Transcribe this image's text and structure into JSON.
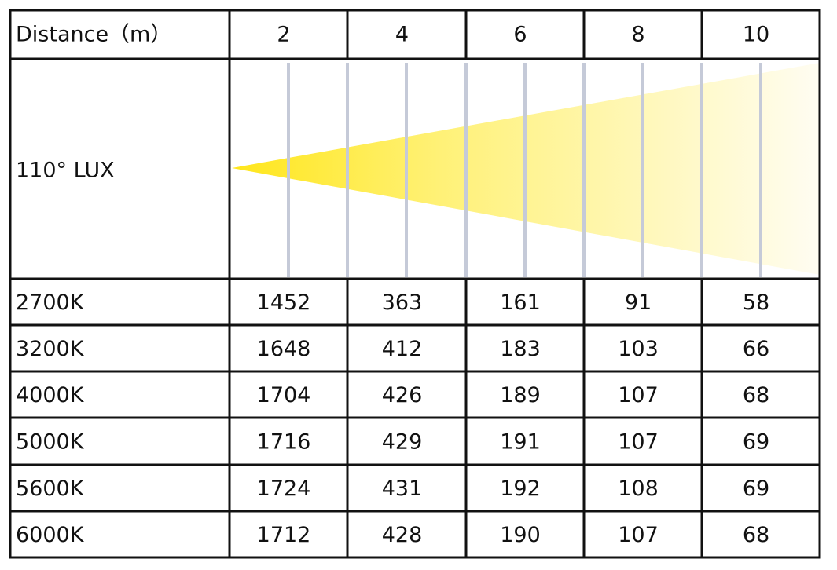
{
  "table": {
    "header": [
      "Distance（m）",
      "2",
      "4",
      "6",
      "8",
      "10"
    ],
    "beam_label": "110° LUX",
    "rows": [
      [
        "2700K",
        "1452",
        "363",
        "161",
        "91",
        "58"
      ],
      [
        "3200K",
        "1648",
        "412",
        "183",
        "103",
        "66"
      ],
      [
        "4000K",
        "1704",
        "426",
        "189",
        "107",
        "68"
      ],
      [
        "5000K",
        "1716",
        "429",
        "191",
        "107",
        "69"
      ],
      [
        "5600K",
        "1724",
        "431",
        "192",
        "108",
        "69"
      ],
      [
        "6000K",
        "1712",
        "428",
        "190",
        "107",
        "68"
      ]
    ]
  }
}
